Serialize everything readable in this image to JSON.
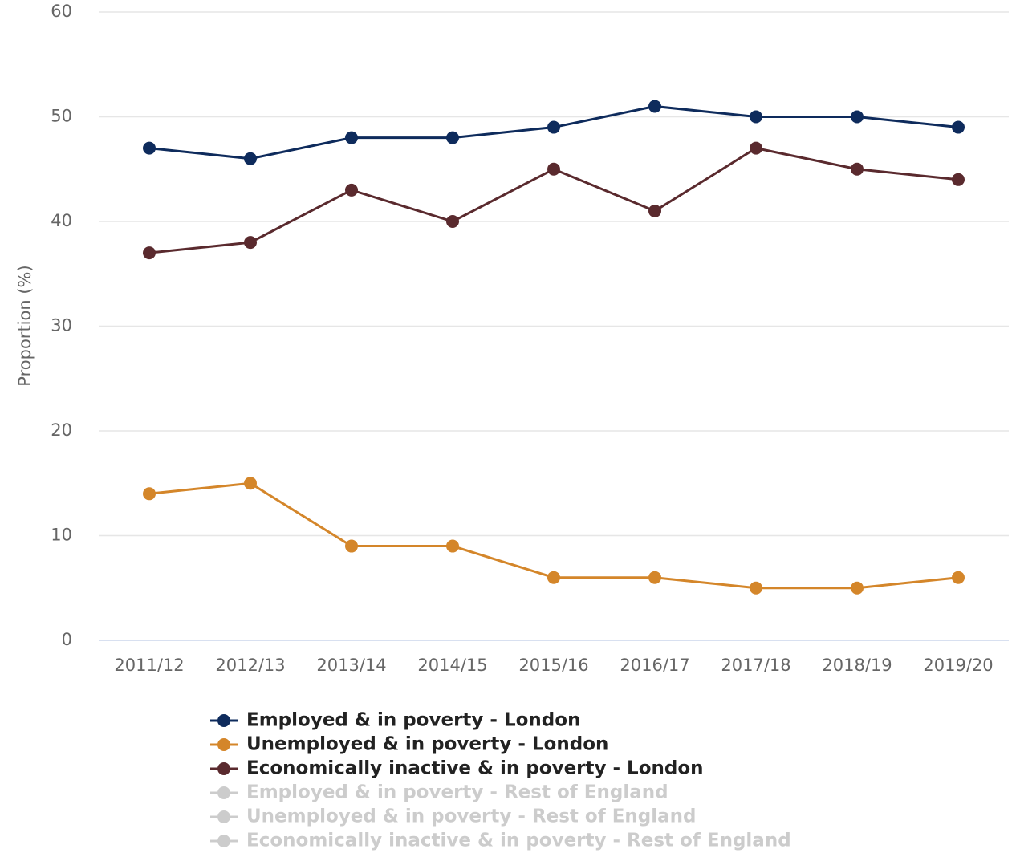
{
  "chart_data": {
    "type": "line",
    "y_label": "Proportion (%)",
    "categories": [
      "2011/12",
      "2012/13",
      "2013/14",
      "2014/15",
      "2015/16",
      "2016/17",
      "2017/18",
      "2018/19",
      "2019/20"
    ],
    "series": [
      {
        "name": "Employed & in poverty - London",
        "color": "#0e2b5c",
        "values": [
          47,
          46,
          48,
          48,
          49,
          51,
          50,
          50,
          49
        ]
      },
      {
        "name": "Unemployed & in poverty - London",
        "color": "#d4862a",
        "values": [
          14,
          15,
          9,
          9,
          6,
          6,
          5,
          5,
          6
        ]
      },
      {
        "name": "Economically inactive & in poverty - London",
        "color": "#5a2a2e",
        "values": [
          37,
          38,
          43,
          40,
          45,
          41,
          47,
          45,
          44
        ]
      }
    ],
    "hidden_series": [
      {
        "name": "Employed & in poverty - Rest of England",
        "color": "#cccccc"
      },
      {
        "name": "Unemployed & in poverty - Rest of England",
        "color": "#cccccc"
      },
      {
        "name": "Economically inactive & in poverty - Rest of England",
        "color": "#cccccc"
      }
    ],
    "ylim": [
      0,
      60
    ],
    "yticks": [
      0,
      10,
      20,
      30,
      40,
      50,
      60
    ],
    "grid": true
  }
}
